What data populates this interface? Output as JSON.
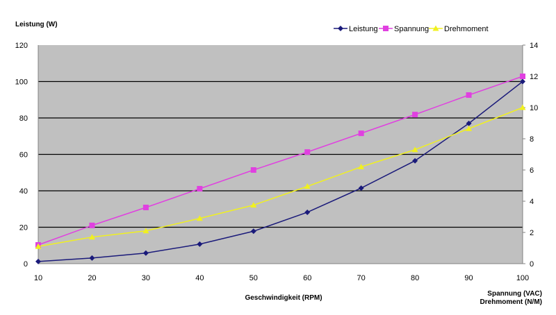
{
  "chart_data": {
    "type": "line",
    "y_left_label": "Leistung (W)",
    "x_label": "Geschwindigkeit (RPM)",
    "y_right_label_1": "Spannung (VAC)",
    "y_right_label_2": "Drehmoment (N/M)",
    "x": [
      10,
      20,
      30,
      40,
      50,
      60,
      70,
      80,
      90,
      100
    ],
    "y_left_range": [
      0,
      120
    ],
    "y_left_ticks": [
      0,
      20,
      40,
      60,
      80,
      100,
      120
    ],
    "y_right_range": [
      0,
      14
    ],
    "y_right_ticks": [
      0,
      2,
      4,
      6,
      8,
      10,
      12,
      14
    ],
    "grid": "horizontal",
    "legend_placement": "top-right",
    "plot_background": "#c0c0c0",
    "series": [
      {
        "name": "Leistung",
        "axis": "left",
        "color": "#1a1a7a",
        "marker": "diamond",
        "values": [
          1.2,
          3.1,
          5.8,
          10.7,
          17.8,
          28.2,
          41.5,
          56.5,
          77,
          100
        ]
      },
      {
        "name": "Spannung",
        "axis": "right",
        "color": "#e040e0",
        "marker": "square",
        "values": [
          1.2,
          2.45,
          3.6,
          4.8,
          6.0,
          7.15,
          8.35,
          9.55,
          10.8,
          12.0
        ]
      },
      {
        "name": "Drehmoment",
        "axis": "right",
        "color": "#f0f020",
        "marker": "triangle",
        "values": [
          1.1,
          1.7,
          2.1,
          2.9,
          3.75,
          4.95,
          6.2,
          7.3,
          8.65,
          10.0
        ]
      }
    ]
  }
}
